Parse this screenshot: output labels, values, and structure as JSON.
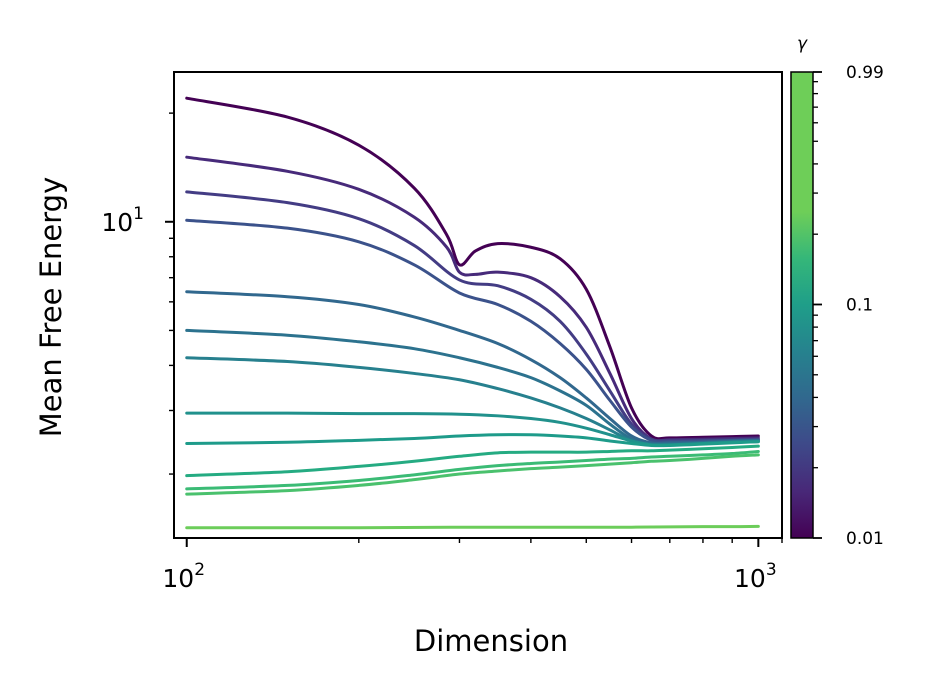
{
  "chart_data": {
    "type": "line",
    "title": "",
    "xlabel": "Dimension",
    "ylabel": "Mean Free Energy",
    "xscale": "log",
    "yscale": "log",
    "xlim": [
      95,
      1100
    ],
    "ylim": [
      1.33,
      26
    ],
    "x_ticks": [
      {
        "value": 100,
        "label": "10",
        "exp": "2"
      },
      {
        "value": 1000,
        "label": "10",
        "exp": "3"
      }
    ],
    "y_ticks": [
      {
        "value": 10,
        "label": "10",
        "exp": "1"
      }
    ],
    "grid": false,
    "legend": "none",
    "colorbar": {
      "label": "γ",
      "scale": "log",
      "range": [
        0.01,
        0.99
      ],
      "ticks": [
        "0.99",
        "0.1",
        "0.01"
      ],
      "colormap": "viridis"
    },
    "series": [
      {
        "color": "#440154",
        "x": [
          100,
          150,
          200,
          250,
          285,
          300,
          320,
          350,
          400,
          450,
          500,
          550,
          600,
          650,
          700,
          800,
          900,
          1000
        ],
        "y": [
          22.0,
          19.5,
          16.3,
          12.4,
          9.2,
          7.6,
          8.3,
          8.7,
          8.5,
          7.9,
          6.5,
          4.5,
          3.05,
          2.55,
          2.52,
          2.53,
          2.54,
          2.55
        ]
      },
      {
        "color": "#472a7a",
        "x": [
          100,
          150,
          200,
          250,
          285,
          300,
          320,
          350,
          400,
          450,
          500,
          550,
          600,
          650,
          700,
          800,
          900,
          1000
        ],
        "y": [
          15.1,
          13.8,
          12.3,
          10.3,
          8.5,
          7.25,
          7.15,
          7.25,
          7.0,
          6.2,
          5.1,
          3.8,
          2.85,
          2.5,
          2.49,
          2.5,
          2.51,
          2.52
        ]
      },
      {
        "color": "#433c84",
        "x": [
          100,
          150,
          200,
          250,
          300,
          350,
          400,
          450,
          500,
          550,
          600,
          650,
          700,
          800,
          900,
          1000
        ],
        "y": [
          12.1,
          11.3,
          10.2,
          8.6,
          6.9,
          6.65,
          6.1,
          5.3,
          4.3,
          3.4,
          2.75,
          2.5,
          2.48,
          2.48,
          2.49,
          2.5
        ]
      },
      {
        "color": "#3b528b",
        "x": [
          100,
          150,
          200,
          250,
          300,
          350,
          400,
          450,
          500,
          550,
          600,
          650,
          700,
          800,
          900,
          1000
        ],
        "y": [
          10.1,
          9.6,
          8.8,
          7.6,
          6.35,
          5.9,
          5.3,
          4.6,
          3.9,
          3.2,
          2.7,
          2.48,
          2.46,
          2.47,
          2.48,
          2.49
        ]
      },
      {
        "color": "#31688e",
        "x": [
          100,
          150,
          200,
          250,
          300,
          350,
          400,
          450,
          500,
          550,
          600,
          650,
          700,
          800,
          900,
          1000
        ],
        "y": [
          6.4,
          6.2,
          5.9,
          5.45,
          5.0,
          4.6,
          4.15,
          3.7,
          3.25,
          2.85,
          2.55,
          2.44,
          2.44,
          2.45,
          2.47,
          2.48
        ]
      },
      {
        "color": "#2c728e",
        "x": [
          100,
          150,
          200,
          250,
          300,
          350,
          400,
          450,
          500,
          550,
          600,
          650,
          700,
          800,
          900,
          1000
        ],
        "y": [
          5.0,
          4.85,
          4.65,
          4.45,
          4.2,
          3.95,
          3.7,
          3.4,
          3.1,
          2.75,
          2.5,
          2.42,
          2.42,
          2.44,
          2.46,
          2.47
        ]
      },
      {
        "color": "#27808e",
        "x": [
          100,
          150,
          200,
          250,
          300,
          350,
          400,
          450,
          500,
          550,
          600,
          650,
          700,
          800,
          900,
          1000
        ],
        "y": [
          4.2,
          4.1,
          3.95,
          3.8,
          3.65,
          3.45,
          3.25,
          3.05,
          2.85,
          2.65,
          2.47,
          2.41,
          2.41,
          2.43,
          2.45,
          2.46
        ]
      },
      {
        "color": "#21918c",
        "x": [
          100,
          150,
          200,
          250,
          300,
          350,
          400,
          450,
          500,
          550,
          600,
          650,
          700,
          800,
          900,
          1000
        ],
        "y": [
          2.95,
          2.95,
          2.94,
          2.94,
          2.93,
          2.9,
          2.85,
          2.78,
          2.68,
          2.57,
          2.47,
          2.41,
          2.41,
          2.43,
          2.45,
          2.46
        ]
      },
      {
        "color": "#1e9b8a",
        "x": [
          100,
          150,
          200,
          250,
          300,
          350,
          400,
          450,
          500,
          550,
          600,
          650,
          700,
          800,
          900,
          1000
        ],
        "y": [
          2.43,
          2.45,
          2.48,
          2.51,
          2.55,
          2.57,
          2.57,
          2.55,
          2.52,
          2.47,
          2.43,
          2.4,
          2.4,
          2.42,
          2.44,
          2.46
        ]
      },
      {
        "color": "#25ab82",
        "x": [
          100,
          150,
          200,
          250,
          300,
          350,
          400,
          450,
          500,
          550,
          600,
          650,
          700,
          800,
          900,
          1000
        ],
        "y": [
          1.98,
          2.03,
          2.1,
          2.17,
          2.24,
          2.29,
          2.3,
          2.3,
          2.3,
          2.31,
          2.32,
          2.32,
          2.33,
          2.35,
          2.37,
          2.39
        ]
      },
      {
        "color": "#3bbb75",
        "x": [
          100,
          150,
          200,
          250,
          300,
          350,
          400,
          450,
          500,
          550,
          600,
          650,
          700,
          800,
          900,
          1000
        ],
        "y": [
          1.82,
          1.86,
          1.92,
          1.99,
          2.06,
          2.11,
          2.14,
          2.16,
          2.18,
          2.2,
          2.21,
          2.23,
          2.24,
          2.26,
          2.28,
          2.31
        ]
      },
      {
        "color": "#4ac16d",
        "x": [
          100,
          150,
          200,
          250,
          300,
          350,
          400,
          450,
          500,
          550,
          600,
          650,
          700,
          800,
          900,
          1000
        ],
        "y": [
          1.76,
          1.8,
          1.86,
          1.93,
          2.0,
          2.04,
          2.07,
          2.09,
          2.11,
          2.13,
          2.15,
          2.17,
          2.18,
          2.21,
          2.24,
          2.26
        ]
      },
      {
        "color": "#6ccd5a",
        "x": [
          100,
          200,
          300,
          400,
          500,
          600,
          700,
          800,
          900,
          1000
        ],
        "y": [
          1.42,
          1.42,
          1.425,
          1.425,
          1.425,
          1.425,
          1.428,
          1.43,
          1.43,
          1.432
        ]
      }
    ]
  }
}
